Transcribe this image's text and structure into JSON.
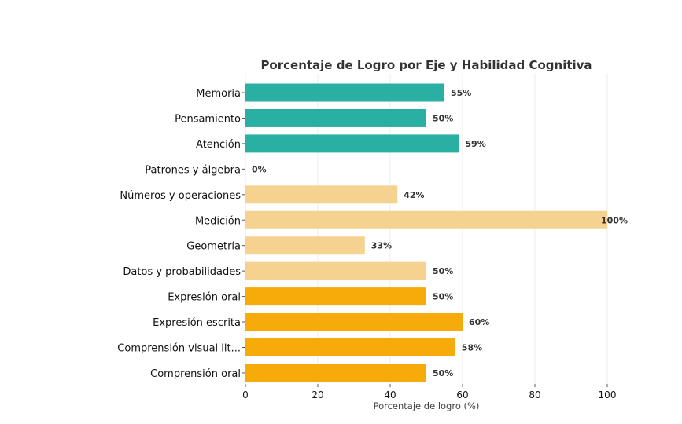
{
  "chart_data": {
    "type": "bar",
    "orientation": "horizontal",
    "title": "Porcentaje de Logro por Eje y Habilidad Cognitiva",
    "xlabel": "Porcentaje de logro (%)",
    "ylabel": "",
    "xlim": [
      0,
      100
    ],
    "xticks": [
      0,
      20,
      40,
      60,
      80,
      100
    ],
    "grid": true,
    "categories": [
      "Memoria",
      "Pensamiento",
      "Atención",
      "Patrones y álgebra",
      "Números y operaciones",
      "Medición",
      "Geometría",
      "Datos y probabilidades",
      "Expresión oral",
      "Expresión escrita",
      "Comprensión visual lit...",
      "Comprensión oral"
    ],
    "values": [
      55,
      50,
      59,
      0,
      42,
      100,
      33,
      50,
      50,
      60,
      58,
      50
    ],
    "value_labels": [
      "55%",
      "50%",
      "59%",
      "0%",
      "42%",
      "100%",
      "33%",
      "50%",
      "50%",
      "60%",
      "58%",
      "50%"
    ],
    "colors": [
      "#2aafa3",
      "#2aafa3",
      "#2aafa3",
      "#f6d291",
      "#f6d291",
      "#f6d291",
      "#f6d291",
      "#f6d291",
      "#f7ab0a",
      "#f7ab0a",
      "#f7ab0a",
      "#f7ab0a"
    ]
  }
}
